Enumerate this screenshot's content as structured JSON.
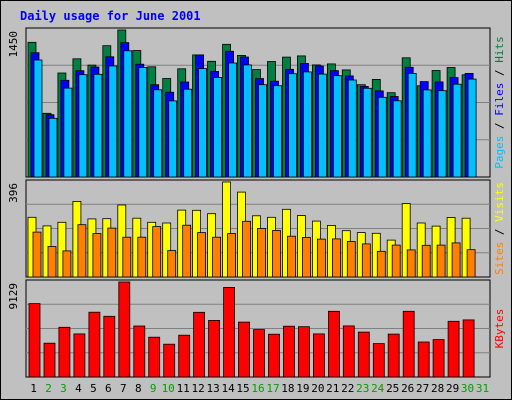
{
  "chart_data": [
    {
      "type": "bar",
      "title": "Daily usage for June 2001",
      "categories": [
        "1",
        "2",
        "3",
        "4",
        "5",
        "6",
        "7",
        "8",
        "9",
        "10",
        "11",
        "12",
        "13",
        "14",
        "15",
        "16",
        "17",
        "18",
        "19",
        "20",
        "21",
        "22",
        "23",
        "24",
        "25",
        "26",
        "27",
        "28",
        "29",
        "30",
        "31"
      ],
      "weekend_days": [
        "2",
        "3",
        "9",
        "10",
        "16",
        "17",
        "23",
        "24",
        "30",
        "31"
      ],
      "ymax_label": "1450",
      "ylim": [
        0,
        1450
      ],
      "panel_label_parts": [
        "Pages",
        "Files",
        "Hits"
      ],
      "series": [
        {
          "name": "Hits",
          "color": "#008040",
          "values": [
            1329,
            628,
            1026,
            1166,
            1104,
            1295,
            1450,
            1248,
            1087,
            972,
            1067,
            1204,
            1141,
            1309,
            1199,
            1059,
            1139,
            1183,
            1195,
            1106,
            1116,
            1056,
            910,
            963,
            832,
            1176,
            900,
            1051,
            1080,
            1008,
            null
          ]
        },
        {
          "name": "Files",
          "color": "#0000ff",
          "values": [
            1226,
            615,
            954,
            1049,
            1085,
            1186,
            1326,
            1113,
            910,
            836,
            937,
            1204,
            1041,
            1240,
            1184,
            972,
            945,
            1062,
            1121,
            1095,
            1050,
            997,
            894,
            849,
            794,
            1082,
            941,
            938,
            980,
            1022,
            null
          ]
        },
        {
          "name": "Pages",
          "color": "#00c0ff",
          "values": [
            1154,
            579,
            877,
            1009,
            1013,
            1095,
            1245,
            1080,
            860,
            751,
            866,
            1069,
            982,
            1124,
            1106,
            910,
            901,
            1019,
            1037,
            1015,
            999,
            957,
            875,
            786,
            752,
            1022,
            859,
            851,
            915,
            966,
            null
          ]
        }
      ]
    },
    {
      "type": "bar",
      "ymax_label": "396",
      "ylim": [
        0,
        396
      ],
      "panel_label_parts": [
        "Sites",
        "Visits"
      ],
      "series": [
        {
          "name": "Visits",
          "color": "#ffff00",
          "values": [
            249,
            213,
            228,
            315,
            242,
            243,
            300,
            245,
            228,
            225,
            279,
            278,
            264,
            396,
            354,
            255,
            249,
            282,
            256,
            233,
            215,
            193,
            185,
            182,
            154,
            306,
            225,
            212,
            248,
            245,
            null
          ]
        },
        {
          "name": "Sites",
          "color": "#ff8000",
          "values": [
            187,
            127,
            109,
            218,
            181,
            204,
            166,
            166,
            210,
            110,
            216,
            185,
            166,
            181,
            232,
            202,
            194,
            170,
            165,
            158,
            159,
            148,
            138,
            107,
            133,
            113,
            132,
            133,
            142,
            114,
            null
          ]
        }
      ]
    },
    {
      "type": "bar",
      "ymax_label": "9129",
      "ylim": [
        0,
        9129
      ],
      "panel_label_parts": [
        "KBytes"
      ],
      "series": [
        {
          "name": "KBytes",
          "color": "#ff0000",
          "values": [
            7051,
            3246,
            4773,
            4138,
            6225,
            5830,
            9129,
            4905,
            3826,
            3154,
            4021,
            6221,
            5435,
            8609,
            5273,
            4551,
            4114,
            4879,
            4836,
            4142,
            6314,
            4912,
            4314,
            3208,
            4125,
            6313,
            3365,
            3596,
            5353,
            5483,
            null
          ]
        }
      ]
    }
  ],
  "colors": {
    "title": "#0000ff",
    "frame_bg": "#c0c0c0",
    "panel_bg": "#c0c0c0",
    "weekday_label": "#000000",
    "weekend_label": "#00a000"
  }
}
